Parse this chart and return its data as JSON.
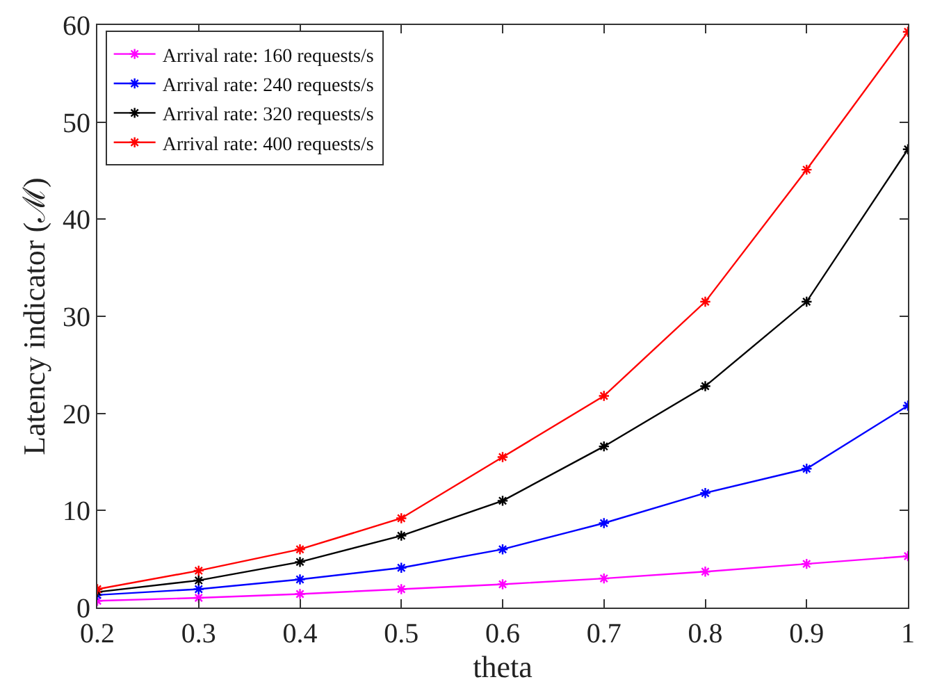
{
  "chart_data": {
    "type": "line",
    "xlabel": "theta",
    "ylabel": "Latency indicator (ℳ)",
    "x": [
      0.2,
      0.3,
      0.4,
      0.5,
      0.6,
      0.7,
      0.8,
      0.9,
      1
    ],
    "xlim": [
      0.2,
      1
    ],
    "xticks": [
      0.2,
      0.3,
      0.4,
      0.5,
      0.6,
      0.7,
      0.8,
      0.9,
      1
    ],
    "ylim": [
      0,
      60
    ],
    "yticks": [
      0,
      10,
      20,
      30,
      40,
      50,
      60
    ],
    "grid": false,
    "legend": "top left",
    "marker": "cross",
    "line_style": "solid",
    "series": [
      {
        "name": "Arrival rate: 160 requests/s",
        "color": "#ff00ff",
        "values": [
          0.7,
          1.0,
          1.4,
          1.9,
          2.4,
          3.0,
          3.7,
          4.5,
          5.3
        ]
      },
      {
        "name": "Arrival rate: 240 requests/s",
        "color": "#0000ff",
        "values": [
          1.3,
          1.9,
          2.9,
          4.1,
          6.0,
          8.7,
          11.8,
          14.3,
          20.8
        ]
      },
      {
        "name": "Arrival rate: 320 requests/s",
        "color": "#000000",
        "values": [
          1.6,
          2.8,
          4.7,
          7.4,
          11.0,
          16.6,
          22.8,
          31.5,
          47.2
        ]
      },
      {
        "name": "Arrival rate: 400 requests/s",
        "color": "#ff0000",
        "values": [
          1.9,
          3.8,
          6.0,
          9.2,
          15.5,
          21.8,
          31.5,
          45.1,
          59.3
        ]
      }
    ]
  }
}
